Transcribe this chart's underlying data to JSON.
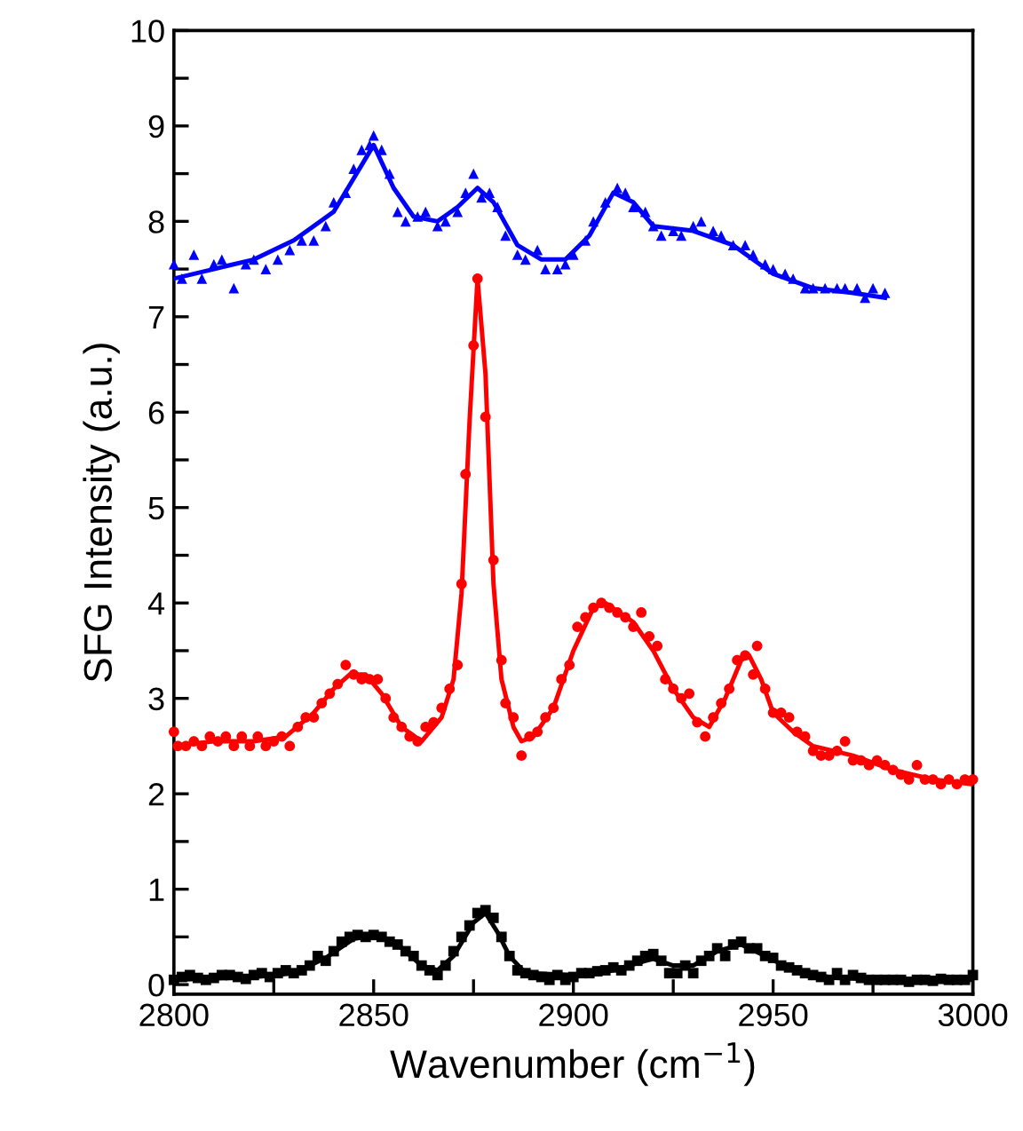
{
  "chart_data": {
    "type": "scatter",
    "xlabel": "Wavenumber (cm$^{−1}$)",
    "ylabel": "SFG Intensity (a.u.)",
    "xlim": [
      2800,
      3000
    ],
    "ylim": [
      -0.1,
      10
    ],
    "xticks": [
      2800,
      {
        "value": 2825,
        "label": null
      },
      2850,
      {
        "value": 2875,
        "label": null
      },
      2900,
      {
        "value": 2925,
        "label": null
      },
      2950,
      {
        "value": 2975,
        "label": null
      },
      3000
    ],
    "yticks": [
      0,
      {
        "value": 0.5,
        "label": null
      },
      1,
      {
        "value": 1.5,
        "label": null
      },
      2,
      {
        "value": 2.5,
        "label": null
      },
      3,
      {
        "value": 3.5,
        "label": null
      },
      4,
      {
        "value": 4.5,
        "label": null
      },
      5,
      {
        "value": 5.5,
        "label": null
      },
      6,
      {
        "value": 6.5,
        "label": null
      },
      7,
      {
        "value": 7.5,
        "label": null
      },
      8,
      {
        "value": 8.5,
        "label": null
      },
      9,
      {
        "value": 9.5,
        "label": null
      },
      10
    ],
    "grid": false,
    "legend": false,
    "series": [
      {
        "marker": "square",
        "color": "#000000",
        "x": [
          2800,
          2802,
          2804,
          2806,
          2808,
          2810,
          2812,
          2814,
          2816,
          2818,
          2820,
          2822,
          2824,
          2826,
          2828,
          2830,
          2832,
          2834,
          2836,
          2838,
          2840,
          2842,
          2844,
          2846,
          2848,
          2850,
          2852,
          2854,
          2856,
          2858,
          2860,
          2862,
          2864,
          2866,
          2868,
          2870,
          2872,
          2874,
          2876,
          2878,
          2880,
          2882,
          2884,
          2886,
          2888,
          2890,
          2892,
          2894,
          2896,
          2898,
          2900,
          2902,
          2904,
          2906,
          2908,
          2910,
          2912,
          2914,
          2916,
          2918,
          2920,
          2922,
          2924,
          2926,
          2928,
          2930,
          2932,
          2934,
          2936,
          2938,
          2940,
          2942,
          2944,
          2946,
          2948,
          2950,
          2952,
          2954,
          2956,
          2958,
          2960,
          2962,
          2964,
          2966,
          2968,
          2970,
          2972,
          2974,
          2976,
          2978,
          2980,
          2982,
          2984,
          2986,
          2988,
          2990,
          2992,
          2994,
          2996,
          2998,
          3000
        ],
        "values": [
          0.05,
          0.08,
          0.1,
          0.07,
          0.05,
          0.07,
          0.1,
          0.1,
          0.08,
          0.06,
          0.1,
          0.12,
          0.08,
          0.12,
          0.15,
          0.12,
          0.15,
          0.2,
          0.3,
          0.25,
          0.35,
          0.45,
          0.5,
          0.52,
          0.5,
          0.52,
          0.5,
          0.45,
          0.42,
          0.35,
          0.3,
          0.2,
          0.15,
          0.1,
          0.2,
          0.35,
          0.5,
          0.62,
          0.75,
          0.78,
          0.7,
          0.5,
          0.3,
          0.15,
          0.12,
          0.1,
          0.08,
          0.05,
          0.1,
          0.05,
          0.08,
          0.12,
          0.12,
          0.14,
          0.15,
          0.18,
          0.15,
          0.2,
          0.25,
          0.3,
          0.32,
          0.25,
          0.12,
          0.12,
          0.2,
          0.12,
          0.25,
          0.3,
          0.38,
          0.3,
          0.42,
          0.45,
          0.38,
          0.38,
          0.3,
          0.28,
          0.2,
          0.18,
          0.15,
          0.12,
          0.1,
          0.08,
          0.05,
          0.12,
          0.05,
          0.1,
          0.07,
          0.05,
          0.05,
          0.05,
          0.05,
          0.05,
          0.03,
          0.05,
          0.05,
          0.04,
          0.06,
          0.05,
          0.05,
          0.05,
          0.1
        ]
      },
      {
        "type": "line",
        "marker": "none",
        "line_style": "solid",
        "color": "#000000",
        "x": [
          2800,
          2820,
          2830,
          2838,
          2845,
          2850,
          2856,
          2862,
          2866,
          2870,
          2875,
          2878,
          2881,
          2884,
          2888,
          2900,
          2910,
          2918,
          2920,
          2925,
          2930,
          2936,
          2942,
          2948,
          2955,
          2965,
          2980,
          3000
        ],
        "values": [
          0.05,
          0.08,
          0.12,
          0.28,
          0.48,
          0.52,
          0.42,
          0.2,
          0.15,
          0.3,
          0.65,
          0.75,
          0.55,
          0.3,
          0.12,
          0.1,
          0.15,
          0.25,
          0.27,
          0.2,
          0.2,
          0.35,
          0.42,
          0.3,
          0.15,
          0.07,
          0.05,
          0.05
        ]
      },
      {
        "marker": "circle",
        "color": "#ff0000",
        "x": [
          2800,
          2801,
          2803,
          2805,
          2807,
          2809,
          2811,
          2813,
          2815,
          2817,
          2819,
          2821,
          2823,
          2825,
          2827,
          2829,
          2831,
          2833,
          2835,
          2837,
          2839,
          2841,
          2843,
          2845,
          2847,
          2849,
          2851,
          2853,
          2855,
          2857,
          2859,
          2861,
          2863,
          2865,
          2867,
          2869,
          2871,
          2872,
          2873,
          2875,
          2876,
          2878,
          2880,
          2882,
          2883,
          2885,
          2887,
          2889,
          2891,
          2893,
          2895,
          2897,
          2899,
          2901,
          2903,
          2905,
          2907,
          2909,
          2911,
          2913,
          2915,
          2917,
          2919,
          2921,
          2923,
          2925,
          2927,
          2929,
          2931,
          2933,
          2935,
          2937,
          2939,
          2941,
          2943,
          2945,
          2946,
          2948,
          2950,
          2952,
          2954,
          2956,
          2958,
          2960,
          2962,
          2964,
          2966,
          2968,
          2970,
          2972,
          2974,
          2976,
          2978,
          2980,
          2982,
          2984,
          2986,
          2988,
          2990,
          2992,
          2994,
          2996,
          2998,
          3000
        ],
        "values": [
          2.65,
          2.5,
          2.5,
          2.55,
          2.5,
          2.6,
          2.55,
          2.6,
          2.5,
          2.6,
          2.5,
          2.6,
          2.5,
          2.55,
          2.6,
          2.5,
          2.7,
          2.8,
          2.8,
          2.95,
          3.05,
          3.15,
          3.35,
          3.25,
          3.2,
          3.2,
          3.2,
          3.0,
          2.8,
          2.7,
          2.6,
          2.55,
          2.7,
          2.75,
          2.9,
          3.1,
          3.35,
          4.2,
          5.35,
          6.7,
          7.4,
          5.95,
          4.45,
          3.4,
          2.95,
          2.8,
          2.4,
          2.6,
          2.65,
          2.8,
          2.9,
          3.2,
          3.35,
          3.75,
          3.85,
          3.95,
          4.0,
          3.95,
          3.9,
          3.85,
          3.75,
          3.9,
          3.65,
          3.55,
          3.2,
          3.1,
          3.0,
          3.05,
          2.75,
          2.6,
          2.8,
          2.95,
          3.1,
          3.4,
          3.45,
          3.25,
          3.55,
          3.1,
          2.85,
          2.85,
          2.8,
          2.65,
          2.6,
          2.45,
          2.4,
          2.4,
          2.45,
          2.55,
          2.35,
          2.35,
          2.3,
          2.35,
          2.3,
          2.25,
          2.2,
          2.15,
          2.3,
          2.15,
          2.15,
          2.1,
          2.15,
          2.1,
          2.15,
          2.15
        ]
      },
      {
        "type": "line",
        "marker": "none",
        "line_style": "solid",
        "color": "#ff0000",
        "x": [
          2800,
          2810,
          2820,
          2828,
          2835,
          2840,
          2844,
          2848,
          2852,
          2857,
          2862,
          2867,
          2870,
          2872,
          2874,
          2876,
          2878,
          2880,
          2882,
          2885,
          2887,
          2890,
          2895,
          2900,
          2905,
          2908,
          2915,
          2920,
          2925,
          2930,
          2934,
          2938,
          2942,
          2944,
          2947,
          2950,
          2955,
          2960,
          2970,
          2980,
          2990,
          3000
        ],
        "values": [
          2.5,
          2.55,
          2.55,
          2.6,
          2.85,
          3.1,
          3.25,
          3.25,
          3.05,
          2.7,
          2.55,
          2.8,
          3.2,
          4.1,
          5.9,
          7.4,
          6.4,
          4.2,
          3.2,
          2.7,
          2.55,
          2.6,
          2.9,
          3.5,
          3.95,
          4.0,
          3.8,
          3.5,
          3.1,
          2.8,
          2.7,
          3.0,
          3.4,
          3.45,
          3.2,
          2.85,
          2.65,
          2.5,
          2.4,
          2.25,
          2.15,
          2.1
        ]
      },
      {
        "marker": "triangle",
        "color": "#0000ff",
        "x": [
          2800,
          2802,
          2805,
          2807,
          2810,
          2812,
          2815,
          2818,
          2820,
          2823,
          2826,
          2829,
          2832,
          2835,
          2838,
          2840,
          2843,
          2845,
          2847,
          2849,
          2850,
          2852,
          2854,
          2856,
          2858,
          2861,
          2863,
          2866,
          2868,
          2871,
          2873,
          2875,
          2877,
          2879,
          2881,
          2883,
          2886,
          2888,
          2891,
          2893,
          2896,
          2898,
          2900,
          2903,
          2905,
          2908,
          2911,
          2913,
          2915,
          2918,
          2920,
          2922,
          2925,
          2927,
          2930,
          2932,
          2935,
          2937,
          2940,
          2943,
          2945,
          2948,
          2950,
          2953,
          2955,
          2958,
          2960,
          2963,
          2966,
          2968,
          2971,
          2973,
          2975,
          2978
        ],
        "values": [
          7.55,
          7.4,
          7.65,
          7.4,
          7.55,
          7.6,
          7.3,
          7.55,
          7.6,
          7.5,
          7.6,
          7.7,
          7.8,
          7.8,
          7.95,
          8.2,
          8.3,
          8.55,
          8.75,
          8.8,
          8.9,
          8.75,
          8.5,
          8.1,
          8.0,
          8.05,
          8.1,
          7.95,
          8.0,
          8.1,
          8.3,
          8.5,
          8.25,
          8.3,
          8.15,
          7.85,
          7.65,
          7.6,
          7.7,
          7.5,
          7.5,
          7.55,
          7.65,
          7.8,
          8.0,
          8.2,
          8.35,
          8.3,
          8.15,
          8.1,
          7.95,
          7.85,
          7.9,
          7.85,
          7.95,
          8.0,
          7.9,
          7.85,
          7.75,
          7.75,
          7.65,
          7.55,
          7.5,
          7.45,
          7.4,
          7.3,
          7.3,
          7.3,
          7.3,
          7.3,
          7.3,
          7.2,
          7.3,
          7.25
        ]
      },
      {
        "type": "line",
        "marker": "none",
        "line_style": "solid",
        "color": "#0000ff",
        "x": [
          2800,
          2810,
          2820,
          2830,
          2840,
          2845,
          2850,
          2855,
          2860,
          2866,
          2871,
          2876,
          2880,
          2886,
          2892,
          2898,
          2904,
          2910,
          2915,
          2920,
          2930,
          2940,
          2950,
          2960,
          2970,
          2978
        ],
        "values": [
          7.4,
          7.5,
          7.6,
          7.8,
          8.1,
          8.45,
          8.8,
          8.35,
          8.05,
          8.0,
          8.15,
          8.35,
          8.2,
          7.75,
          7.6,
          7.6,
          7.85,
          8.3,
          8.2,
          7.95,
          7.9,
          7.75,
          7.45,
          7.3,
          7.25,
          7.2
        ]
      }
    ]
  }
}
